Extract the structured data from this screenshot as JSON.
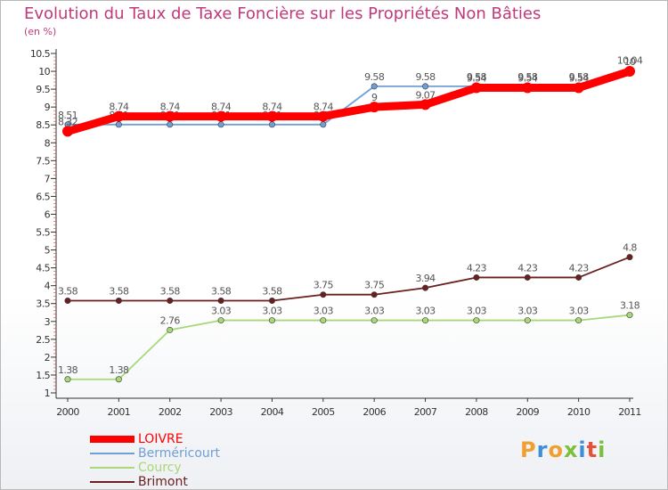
{
  "header": {
    "title": "Evolution du Taux de Taxe Foncière sur les Propriétés Non Bâties",
    "unit": "(en %)"
  },
  "logo": {
    "text": "Proxiti"
  },
  "chart_data": {
    "type": "line",
    "title": "Evolution du Taux de Taxe Foncière sur les Propriétés Non Bâties",
    "ylabel": "(en %)",
    "xlabel": "",
    "ylim": [
      1,
      10.5
    ],
    "yticks": [
      "1",
      "1.5",
      "2",
      "2.5",
      "3",
      "3.5",
      "4",
      "4.5",
      "5",
      "5.5",
      "6",
      "6.5",
      "7",
      "7.5",
      "8",
      "8.5",
      "9",
      "9.5",
      "10",
      "10.5"
    ],
    "grid": false,
    "legend_position": "bottom-left",
    "categories": [
      "2000",
      "2001",
      "2002",
      "2003",
      "2004",
      "2005",
      "2006",
      "2007",
      "2008",
      "2009",
      "2010",
      "2011"
    ],
    "series": [
      {
        "name": "Bermericourt_key",
        "label": "Berméricourt",
        "color": "#6f9fd6",
        "values": [
          8.51,
          8.51,
          8.51,
          8.51,
          8.51,
          8.51,
          9.58,
          9.58,
          9.58,
          9.58,
          9.58,
          10.04
        ],
        "labels": [
          "8.51",
          "8.51",
          "8.51",
          "8.51",
          "8.51",
          "8.51",
          "9.58",
          "9.58",
          "9.58",
          "9.58",
          "9.58",
          "10.04"
        ]
      },
      {
        "name": "Brimont_key",
        "label": "Brimont",
        "color": "#6b1f1f",
        "values": [
          3.58,
          3.58,
          3.58,
          3.58,
          3.58,
          3.75,
          3.75,
          3.94,
          4.23,
          4.23,
          4.23,
          4.8
        ],
        "labels": [
          "3.58",
          "3.58",
          "3.58",
          "3.58",
          "3.58",
          "3.75",
          "3.75",
          "3.94",
          "4.23",
          "4.23",
          "4.23",
          "4.8"
        ]
      },
      {
        "name": "Courcy_key",
        "label": "Courcy",
        "color": "#a8d878",
        "values": [
          1.38,
          1.38,
          2.76,
          3.03,
          3.03,
          3.03,
          3.03,
          3.03,
          3.03,
          3.03,
          3.03,
          3.18
        ],
        "labels": [
          "1.38",
          "1.38",
          "2.76",
          "3.03",
          "3.03",
          "3.03",
          "3.03",
          "3.03",
          "3.03",
          "3.03",
          "3.03",
          "3.18"
        ]
      },
      {
        "name": "LOIVRE_key",
        "label": "LOIVRE",
        "color": "#ff0000",
        "values": [
          8.32,
          8.74,
          8.74,
          8.74,
          8.74,
          8.74,
          9.0,
          9.07,
          9.54,
          9.54,
          9.54,
          10.0
        ],
        "labels": [
          "8.32",
          "8.74",
          "8.74",
          "8.74",
          "8.74",
          "8.74",
          "9",
          "9.07",
          "9.54",
          "9.54",
          "9.54",
          "10"
        ]
      }
    ]
  },
  "legend": [
    {
      "label": "LOIVRE",
      "color": "#ff0000",
      "thick": true
    },
    {
      "label": "Berméricourt",
      "color": "#6f9fd6",
      "thick": false
    },
    {
      "label": "Courcy",
      "color": "#a8d878",
      "thick": false
    },
    {
      "label": "Brimont",
      "color": "#6b1f1f",
      "thick": false
    }
  ],
  "logo_colors": [
    "#f0a030",
    "#3c8fd8",
    "#f0a030",
    "#7bbf3a",
    "#3c8fd8",
    "#e8503a",
    "#7bbf3a"
  ]
}
